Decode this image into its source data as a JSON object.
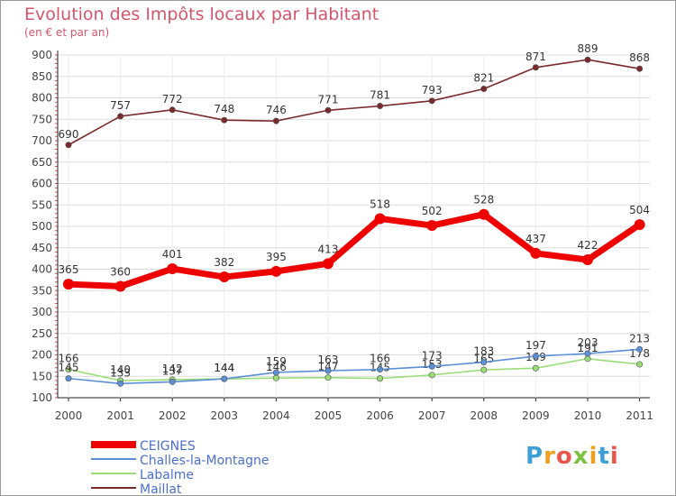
{
  "header": {
    "title": "Evolution des Impôts locaux par Habitant",
    "subtitle": "(en € et par an)"
  },
  "logo": {
    "text": "Proxiti",
    "letter_colors": [
      "#3fa0d8",
      "#f0a020",
      "#e8564b",
      "#7cc242",
      "#f0a020",
      "#3fa0d8",
      "#e8564b"
    ]
  },
  "chart_data": {
    "type": "line",
    "x": [
      "2000",
      "2001",
      "2002",
      "2003",
      "2004",
      "2005",
      "2006",
      "2007",
      "2008",
      "2009",
      "2010",
      "2011"
    ],
    "ylim": [
      100,
      900
    ],
    "yticks": [
      100,
      150,
      200,
      250,
      300,
      350,
      400,
      450,
      500,
      550,
      600,
      650,
      700,
      750,
      800,
      850,
      900
    ],
    "grid": "horizontal",
    "legend_position": "bottom-left",
    "series": [
      {
        "name": "CEIGNES",
        "color": "#ee0000",
        "values": [
          365,
          360,
          401,
          382,
          395,
          413,
          518,
          502,
          528,
          437,
          422,
          504
        ],
        "labels": [
          "365",
          "360",
          "401",
          "382",
          "395",
          "413",
          "518",
          "502",
          "528",
          "437",
          "422",
          "504"
        ]
      },
      {
        "name": "Challes-la-Montagne",
        "color": "#5b8fd6",
        "values": [
          145,
          133,
          137,
          144,
          159,
          163,
          166,
          173,
          183,
          197,
          203,
          213
        ],
        "labels": [
          "145",
          "133",
          "137",
          "144",
          "159",
          "163",
          "166",
          "173",
          "183",
          "197",
          "203",
          "213"
        ]
      },
      {
        "name": "Labalme",
        "color": "#99dd77",
        "values": [
          166,
          140,
          142,
          144,
          146,
          147,
          145,
          153,
          165,
          169,
          191,
          178
        ],
        "labels": [
          "166",
          "140",
          "142",
          "144",
          "146",
          "147",
          "145",
          "153",
          "165",
          "169",
          "191",
          "178"
        ]
      },
      {
        "name": "Maillat",
        "color": "#7a2a2a",
        "values": [
          690,
          757,
          772,
          748,
          746,
          771,
          781,
          793,
          821,
          871,
          889,
          868
        ],
        "labels": [
          "690",
          "757",
          "772",
          "748",
          "746",
          "771",
          "781",
          "793",
          "821",
          "871",
          "889",
          "868"
        ]
      }
    ]
  }
}
